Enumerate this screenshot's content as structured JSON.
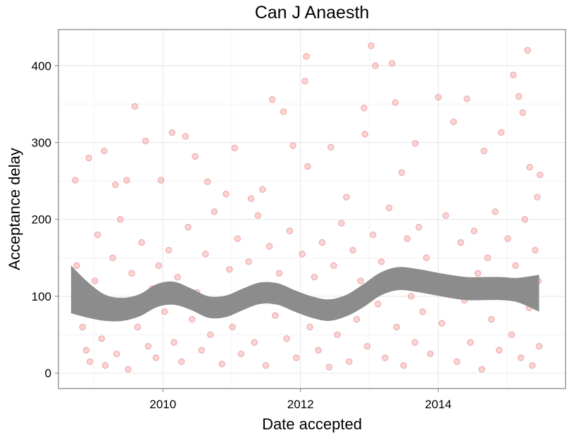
{
  "chart_data": {
    "type": "scatter",
    "title": "Can J Anaesth",
    "xlabel": "Date accepted",
    "ylabel": "Acceptance delay",
    "x_scale": "date",
    "xlim": [
      "2008-06-26",
      "2015-11-07"
    ],
    "ylim": [
      -20,
      447
    ],
    "x_ticks": [
      {
        "value": "2010-01-01",
        "label": "2010"
      },
      {
        "value": "2012-01-01",
        "label": "2012"
      },
      {
        "value": "2014-01-01",
        "label": "2014"
      }
    ],
    "y_ticks": [
      {
        "value": 0,
        "label": "0"
      },
      {
        "value": 100,
        "label": "100"
      },
      {
        "value": 200,
        "label": "200"
      },
      {
        "value": 300,
        "label": "300"
      },
      {
        "value": 400,
        "label": "400"
      }
    ],
    "grid": true,
    "legend": "none",
    "point_color": "#f0a0a0",
    "point_stroke": "#e86a6a",
    "band_color": "#8c8c8c",
    "series": [
      {
        "kind": "points",
        "points": [
          [
            "2008-09-23",
            251
          ],
          [
            "2008-12-04",
            280
          ],
          [
            "2009-02-24",
            289
          ],
          [
            "2009-04-24",
            245
          ],
          [
            "2009-06-23",
            251
          ],
          [
            "2009-08-05",
            347
          ],
          [
            "2009-10-01",
            302
          ],
          [
            "2009-12-22",
            251
          ],
          [
            "2010-02-19",
            313
          ],
          [
            "2010-05-01",
            308
          ],
          [
            "2010-06-21",
            282
          ],
          [
            "2010-08-26",
            249
          ],
          [
            "2010-12-02",
            233
          ],
          [
            "2011-01-17",
            293
          ],
          [
            "2011-04-14",
            227
          ],
          [
            "2011-06-14",
            239
          ],
          [
            "2011-08-04",
            356
          ],
          [
            "2011-10-03",
            340
          ],
          [
            "2011-11-22",
            296
          ],
          [
            "2012-01-25",
            380
          ],
          [
            "2012-02-01",
            412
          ],
          [
            "2012-02-08",
            269
          ],
          [
            "2012-06-10",
            294
          ],
          [
            "2012-09-01",
            229
          ],
          [
            "2012-12-03",
            345
          ],
          [
            "2012-12-08",
            311
          ],
          [
            "2013-01-10",
            426
          ],
          [
            "2013-02-01",
            400
          ],
          [
            "2013-05-01",
            403
          ],
          [
            "2013-05-18",
            352
          ],
          [
            "2013-06-21",
            261
          ],
          [
            "2013-09-01",
            299
          ],
          [
            "2014-01-01",
            359
          ],
          [
            "2014-03-23",
            327
          ],
          [
            "2014-06-02",
            357
          ],
          [
            "2014-09-01",
            289
          ],
          [
            "2014-12-01",
            313
          ],
          [
            "2015-02-03",
            388
          ],
          [
            "2015-03-04",
            360
          ],
          [
            "2015-03-25",
            339
          ],
          [
            "2015-04-20",
            420
          ],
          [
            "2015-05-01",
            268
          ],
          [
            "2015-06-10",
            229
          ],
          [
            "2015-06-25",
            258
          ],
          [
            "2008-10-01",
            140
          ],
          [
            "2008-10-15",
            95
          ],
          [
            "2008-11-01",
            60
          ],
          [
            "2008-11-20",
            30
          ],
          [
            "2008-12-10",
            15
          ],
          [
            "2009-01-05",
            120
          ],
          [
            "2009-01-20",
            180
          ],
          [
            "2009-02-10",
            45
          ],
          [
            "2009-03-01",
            10
          ],
          [
            "2009-03-20",
            75
          ],
          [
            "2009-04-10",
            150
          ],
          [
            "2009-05-01",
            25
          ],
          [
            "2009-05-20",
            200
          ],
          [
            "2009-06-10",
            90
          ],
          [
            "2009-07-01",
            5
          ],
          [
            "2009-07-20",
            130
          ],
          [
            "2009-08-20",
            60
          ],
          [
            "2009-09-10",
            170
          ],
          [
            "2009-10-15",
            35
          ],
          [
            "2009-11-05",
            110
          ],
          [
            "2009-11-25",
            20
          ],
          [
            "2009-12-10",
            140
          ],
          [
            "2010-01-10",
            80
          ],
          [
            "2010-02-01",
            160
          ],
          [
            "2010-03-01",
            40
          ],
          [
            "2010-03-20",
            125
          ],
          [
            "2010-04-10",
            15
          ],
          [
            "2010-05-15",
            190
          ],
          [
            "2010-06-05",
            70
          ],
          [
            "2010-07-01",
            105
          ],
          [
            "2010-07-25",
            30
          ],
          [
            "2010-08-15",
            155
          ],
          [
            "2010-09-10",
            50
          ],
          [
            "2010-10-01",
            210
          ],
          [
            "2010-10-20",
            85
          ],
          [
            "2010-11-10",
            12
          ],
          [
            "2010-12-20",
            135
          ],
          [
            "2011-01-05",
            60
          ],
          [
            "2011-02-01",
            175
          ],
          [
            "2011-02-20",
            25
          ],
          [
            "2011-03-10",
            95
          ],
          [
            "2011-04-01",
            145
          ],
          [
            "2011-05-01",
            40
          ],
          [
            "2011-05-20",
            205
          ],
          [
            "2011-06-01",
            110
          ],
          [
            "2011-07-01",
            10
          ],
          [
            "2011-07-20",
            165
          ],
          [
            "2011-08-20",
            75
          ],
          [
            "2011-09-10",
            130
          ],
          [
            "2011-10-20",
            45
          ],
          [
            "2011-11-05",
            185
          ],
          [
            "2011-12-10",
            20
          ],
          [
            "2011-12-28",
            100
          ],
          [
            "2012-01-10",
            155
          ],
          [
            "2012-02-20",
            60
          ],
          [
            "2012-03-15",
            125
          ],
          [
            "2012-04-05",
            30
          ],
          [
            "2012-04-25",
            170
          ],
          [
            "2012-05-15",
            85
          ],
          [
            "2012-06-01",
            8
          ],
          [
            "2012-06-25",
            140
          ],
          [
            "2012-07-15",
            50
          ],
          [
            "2012-08-05",
            195
          ],
          [
            "2012-08-20",
            95
          ],
          [
            "2012-09-15",
            15
          ],
          [
            "2012-10-05",
            160
          ],
          [
            "2012-10-25",
            70
          ],
          [
            "2012-11-15",
            120
          ],
          [
            "2012-12-20",
            35
          ],
          [
            "2013-01-20",
            180
          ],
          [
            "2013-02-15",
            90
          ],
          [
            "2013-03-05",
            145
          ],
          [
            "2013-03-25",
            20
          ],
          [
            "2013-04-15",
            215
          ],
          [
            "2013-05-25",
            60
          ],
          [
            "2013-06-10",
            130
          ],
          [
            "2013-07-01",
            10
          ],
          [
            "2013-07-20",
            175
          ],
          [
            "2013-08-10",
            100
          ],
          [
            "2013-08-30",
            40
          ],
          [
            "2013-09-20",
            190
          ],
          [
            "2013-10-10",
            80
          ],
          [
            "2013-10-30",
            150
          ],
          [
            "2013-11-20",
            25
          ],
          [
            "2013-12-10",
            120
          ],
          [
            "2014-01-20",
            65
          ],
          [
            "2014-02-10",
            205
          ],
          [
            "2014-03-01",
            110
          ],
          [
            "2014-04-10",
            15
          ],
          [
            "2014-04-30",
            170
          ],
          [
            "2014-05-20",
            95
          ],
          [
            "2014-06-20",
            40
          ],
          [
            "2014-07-10",
            185
          ],
          [
            "2014-07-30",
            130
          ],
          [
            "2014-08-20",
            5
          ],
          [
            "2014-09-20",
            150
          ],
          [
            "2014-10-10",
            70
          ],
          [
            "2014-10-30",
            210
          ],
          [
            "2014-11-20",
            30
          ],
          [
            "2014-12-15",
            115
          ],
          [
            "2015-01-05",
            175
          ],
          [
            "2015-01-25",
            50
          ],
          [
            "2015-02-15",
            140
          ],
          [
            "2015-03-15",
            20
          ],
          [
            "2015-04-05",
            200
          ],
          [
            "2015-04-28",
            85
          ],
          [
            "2015-05-15",
            10
          ],
          [
            "2015-05-30",
            160
          ],
          [
            "2015-06-15",
            120
          ],
          [
            "2015-06-20",
            35
          ]
        ]
      },
      {
        "kind": "smooth_band",
        "points": [
          [
            "2008-09-01",
            108,
            78,
            140
          ],
          [
            "2008-12-01",
            94,
            72,
            118
          ],
          [
            "2009-03-01",
            84,
            68,
            102
          ],
          [
            "2009-06-01",
            82,
            68,
            98
          ],
          [
            "2009-09-01",
            88,
            74,
            103
          ],
          [
            "2009-12-01",
            101,
            86,
            116
          ],
          [
            "2010-03-01",
            104,
            89,
            119
          ],
          [
            "2010-06-01",
            96,
            82,
            110
          ],
          [
            "2010-09-01",
            86,
            72,
            100
          ],
          [
            "2010-12-01",
            87,
            73,
            101
          ],
          [
            "2011-03-01",
            96,
            82,
            110
          ],
          [
            "2011-06-01",
            104,
            90,
            118
          ],
          [
            "2011-09-01",
            103,
            89,
            117
          ],
          [
            "2011-12-01",
            94,
            80,
            108
          ],
          [
            "2012-03-01",
            86,
            72,
            100
          ],
          [
            "2012-06-01",
            82,
            68,
            96
          ],
          [
            "2012-09-01",
            88,
            74,
            102
          ],
          [
            "2012-12-01",
            101,
            86,
            116
          ],
          [
            "2013-03-01",
            116,
            101,
            131
          ],
          [
            "2013-06-01",
            123,
            108,
            138
          ],
          [
            "2013-09-01",
            121,
            106,
            136
          ],
          [
            "2013-12-01",
            117,
            102,
            132
          ],
          [
            "2014-03-01",
            113,
            98,
            128
          ],
          [
            "2014-06-01",
            110,
            95,
            125
          ],
          [
            "2014-09-01",
            110,
            95,
            125
          ],
          [
            "2014-12-01",
            110,
            95,
            125
          ],
          [
            "2015-03-01",
            108,
            92,
            124
          ],
          [
            "2015-06-20",
            104,
            80,
            128
          ]
        ]
      }
    ]
  }
}
